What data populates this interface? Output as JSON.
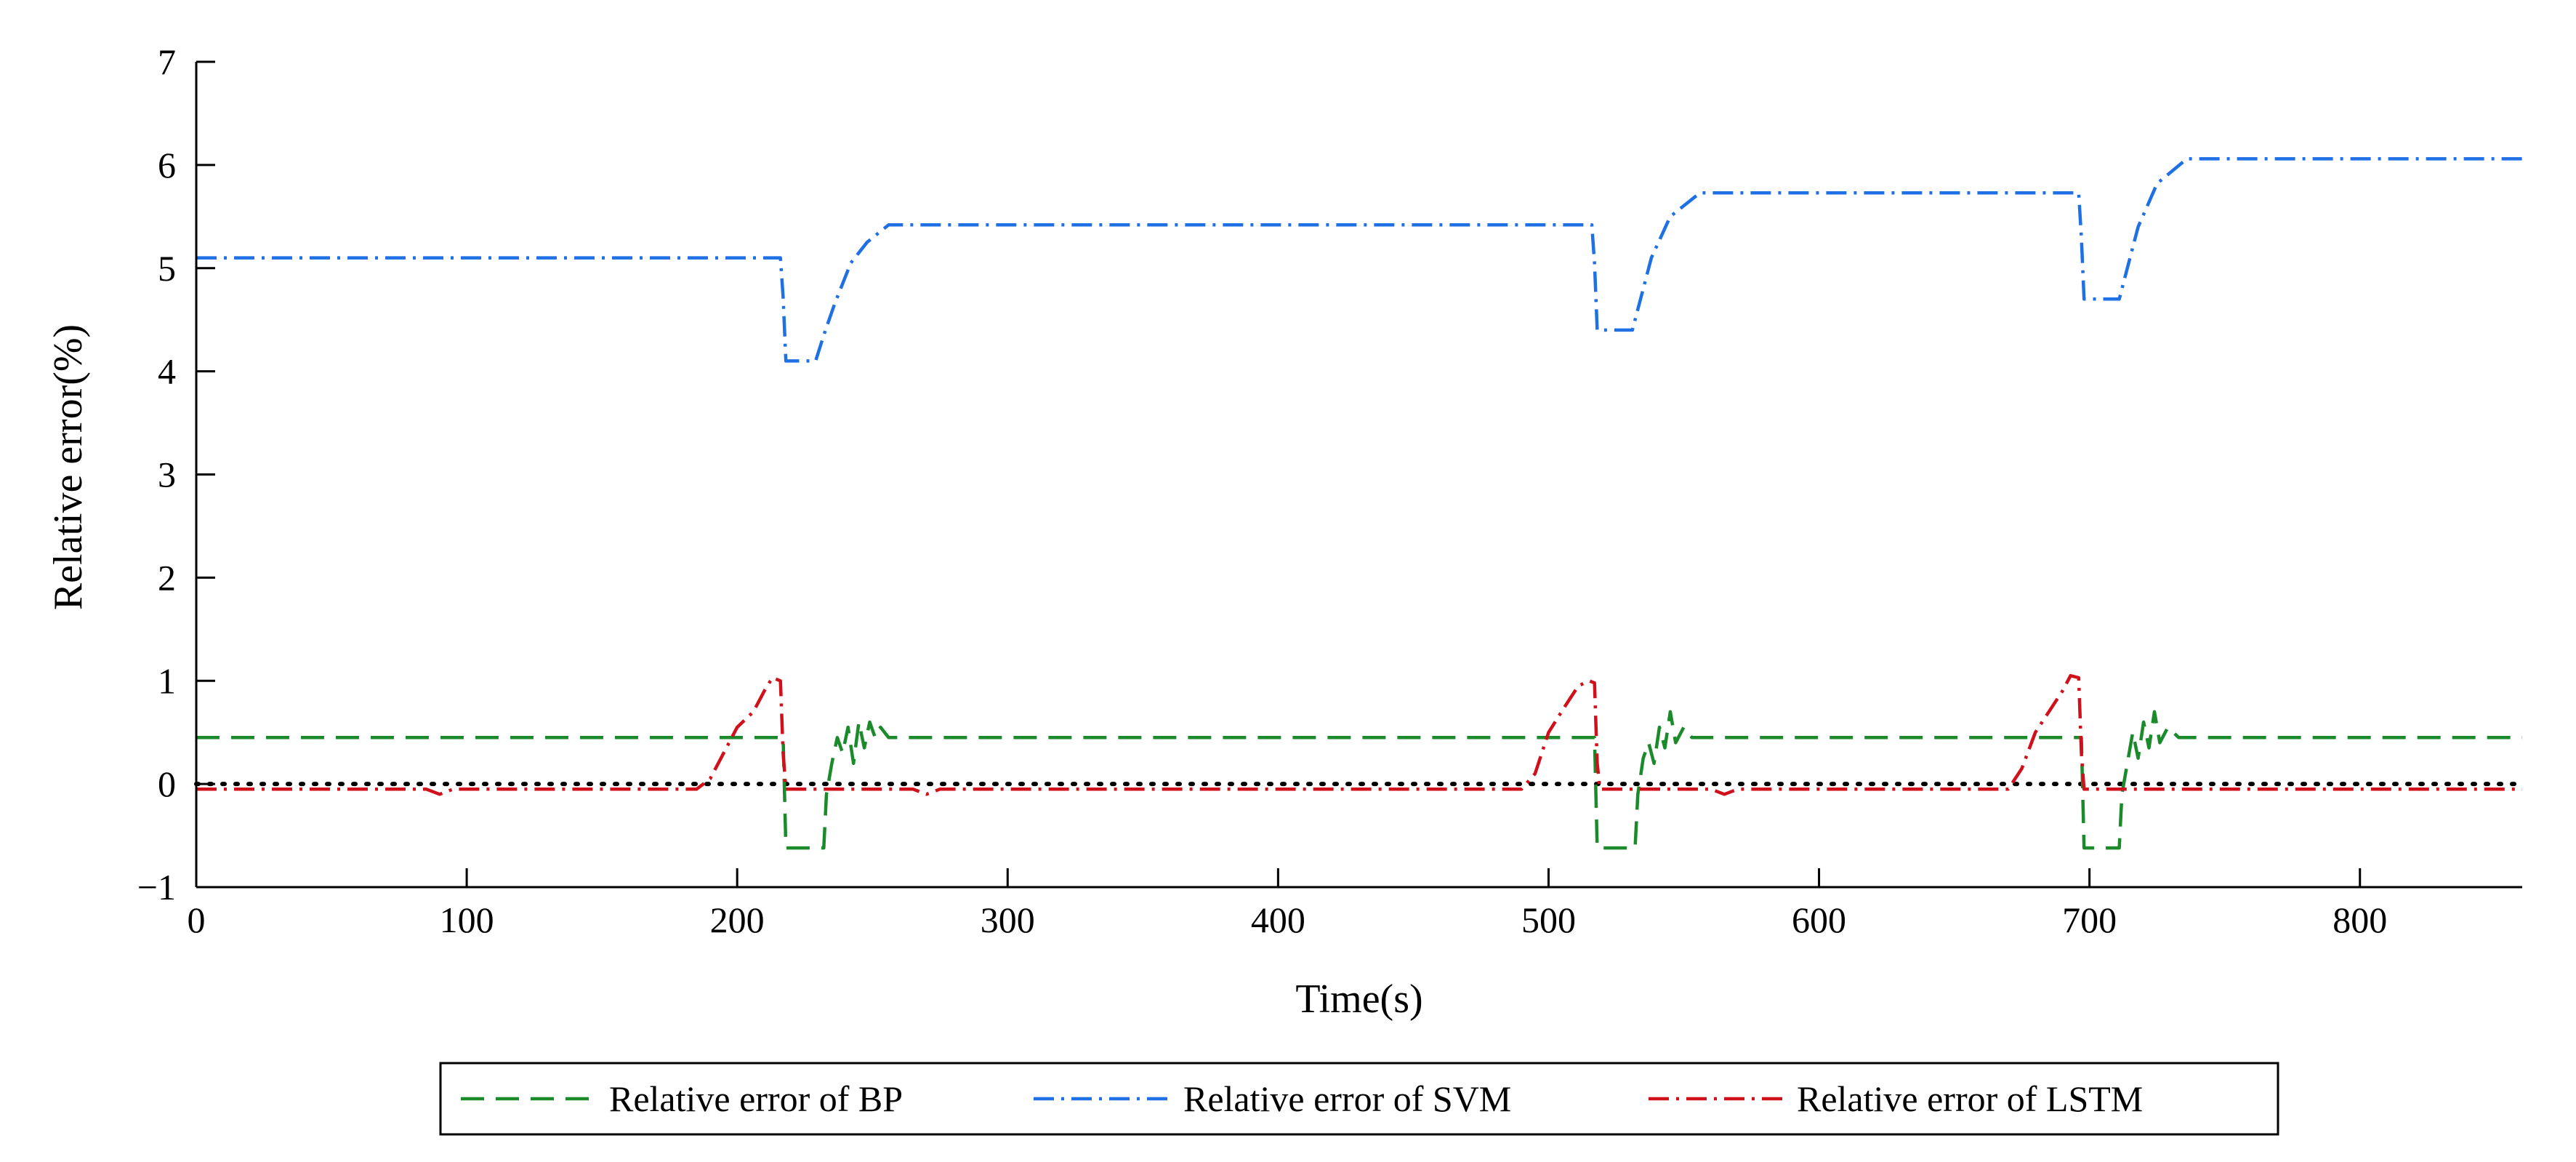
{
  "chart_data": {
    "type": "line",
    "xlabel": "Time(s)",
    "ylabel": "Relative error(%)",
    "xlim": [
      0,
      860
    ],
    "ylim": [
      -1,
      7
    ],
    "xticks": [
      0,
      100,
      200,
      300,
      400,
      500,
      600,
      700,
      800
    ],
    "yticks": [
      -1,
      0,
      1,
      2,
      3,
      4,
      5,
      6,
      7
    ],
    "ytick_labels": [
      "−1",
      "0",
      "1",
      "2",
      "3",
      "4",
      "5",
      "6",
      "7"
    ],
    "grid": false,
    "legend_position": "bottom-center",
    "series": [
      {
        "name": "Relative error of BP",
        "color": "#1a8a2a",
        "dash": "dashed",
        "points": [
          [
            0,
            0.45
          ],
          [
            217,
            0.45
          ],
          [
            218,
            -0.62
          ],
          [
            232,
            -0.62
          ],
          [
            233,
            -0.1
          ],
          [
            235,
            0.2
          ],
          [
            237,
            0.45
          ],
          [
            239,
            0.3
          ],
          [
            241,
            0.55
          ],
          [
            243,
            0.2
          ],
          [
            245,
            0.6
          ],
          [
            247,
            0.35
          ],
          [
            249,
            0.6
          ],
          [
            251,
            0.45
          ],
          [
            253,
            0.55
          ],
          [
            256,
            0.45
          ],
          [
            517,
            0.45
          ],
          [
            518,
            -0.62
          ],
          [
            532,
            -0.62
          ],
          [
            533,
            -0.1
          ],
          [
            535,
            0.25
          ],
          [
            537,
            0.4
          ],
          [
            539,
            0.2
          ],
          [
            541,
            0.55
          ],
          [
            543,
            0.35
          ],
          [
            545,
            0.7
          ],
          [
            547,
            0.4
          ],
          [
            550,
            0.55
          ],
          [
            553,
            0.45
          ],
          [
            697,
            0.45
          ],
          [
            698,
            -0.62
          ],
          [
            711,
            -0.62
          ],
          [
            712,
            -0.1
          ],
          [
            714,
            0.2
          ],
          [
            716,
            0.5
          ],
          [
            718,
            0.25
          ],
          [
            720,
            0.6
          ],
          [
            722,
            0.35
          ],
          [
            724,
            0.7
          ],
          [
            726,
            0.4
          ],
          [
            729,
            0.55
          ],
          [
            733,
            0.45
          ],
          [
            860,
            0.45
          ]
        ]
      },
      {
        "name": "Relative error of SVM",
        "color": "#1f6fe5",
        "dash": "dashdot",
        "points": [
          [
            0,
            5.1
          ],
          [
            216,
            5.1
          ],
          [
            217,
            4.72
          ],
          [
            218,
            4.1
          ],
          [
            229,
            4.1
          ],
          [
            232,
            4.35
          ],
          [
            236,
            4.65
          ],
          [
            242,
            5.05
          ],
          [
            248,
            5.25
          ],
          [
            256,
            5.42
          ],
          [
            516,
            5.42
          ],
          [
            517,
            5.05
          ],
          [
            518,
            4.4
          ],
          [
            531,
            4.4
          ],
          [
            534,
            4.7
          ],
          [
            538,
            5.1
          ],
          [
            545,
            5.5
          ],
          [
            556,
            5.73
          ],
          [
            696,
            5.73
          ],
          [
            697,
            5.3
          ],
          [
            698,
            4.7
          ],
          [
            711,
            4.7
          ],
          [
            714,
            5.0
          ],
          [
            718,
            5.4
          ],
          [
            725,
            5.82
          ],
          [
            736,
            6.06
          ],
          [
            860,
            6.06
          ]
        ]
      },
      {
        "name": "Relative error of LSTM",
        "color": "#d0101a",
        "dash": "dashdot",
        "points": [
          [
            0,
            -0.05
          ],
          [
            85,
            -0.05
          ],
          [
            90,
            -0.1
          ],
          [
            95,
            -0.05
          ],
          [
            185,
            -0.05
          ],
          [
            190,
            0.05
          ],
          [
            195,
            0.3
          ],
          [
            200,
            0.55
          ],
          [
            206,
            0.7
          ],
          [
            210,
            0.9
          ],
          [
            213,
            1.03
          ],
          [
            216,
            1.0
          ],
          [
            217,
            0.3
          ],
          [
            218,
            -0.05
          ],
          [
            265,
            -0.05
          ],
          [
            270,
            -0.1
          ],
          [
            275,
            -0.05
          ],
          [
            490,
            -0.05
          ],
          [
            495,
            0.1
          ],
          [
            500,
            0.5
          ],
          [
            506,
            0.75
          ],
          [
            511,
            0.95
          ],
          [
            515,
            1.0
          ],
          [
            517,
            0.98
          ],
          [
            518,
            0.2
          ],
          [
            519,
            -0.05
          ],
          [
            560,
            -0.05
          ],
          [
            565,
            -0.1
          ],
          [
            570,
            -0.05
          ],
          [
            670,
            -0.05
          ],
          [
            675,
            0.15
          ],
          [
            680,
            0.5
          ],
          [
            685,
            0.7
          ],
          [
            690,
            0.9
          ],
          [
            693,
            1.05
          ],
          [
            696,
            1.03
          ],
          [
            697,
            0.3
          ],
          [
            698,
            -0.05
          ],
          [
            860,
            -0.05
          ]
        ]
      },
      {
        "name": "",
        "color": "#000000",
        "dash": "dotted",
        "points": [
          [
            0,
            0
          ],
          [
            860,
            0
          ]
        ]
      }
    ]
  }
}
